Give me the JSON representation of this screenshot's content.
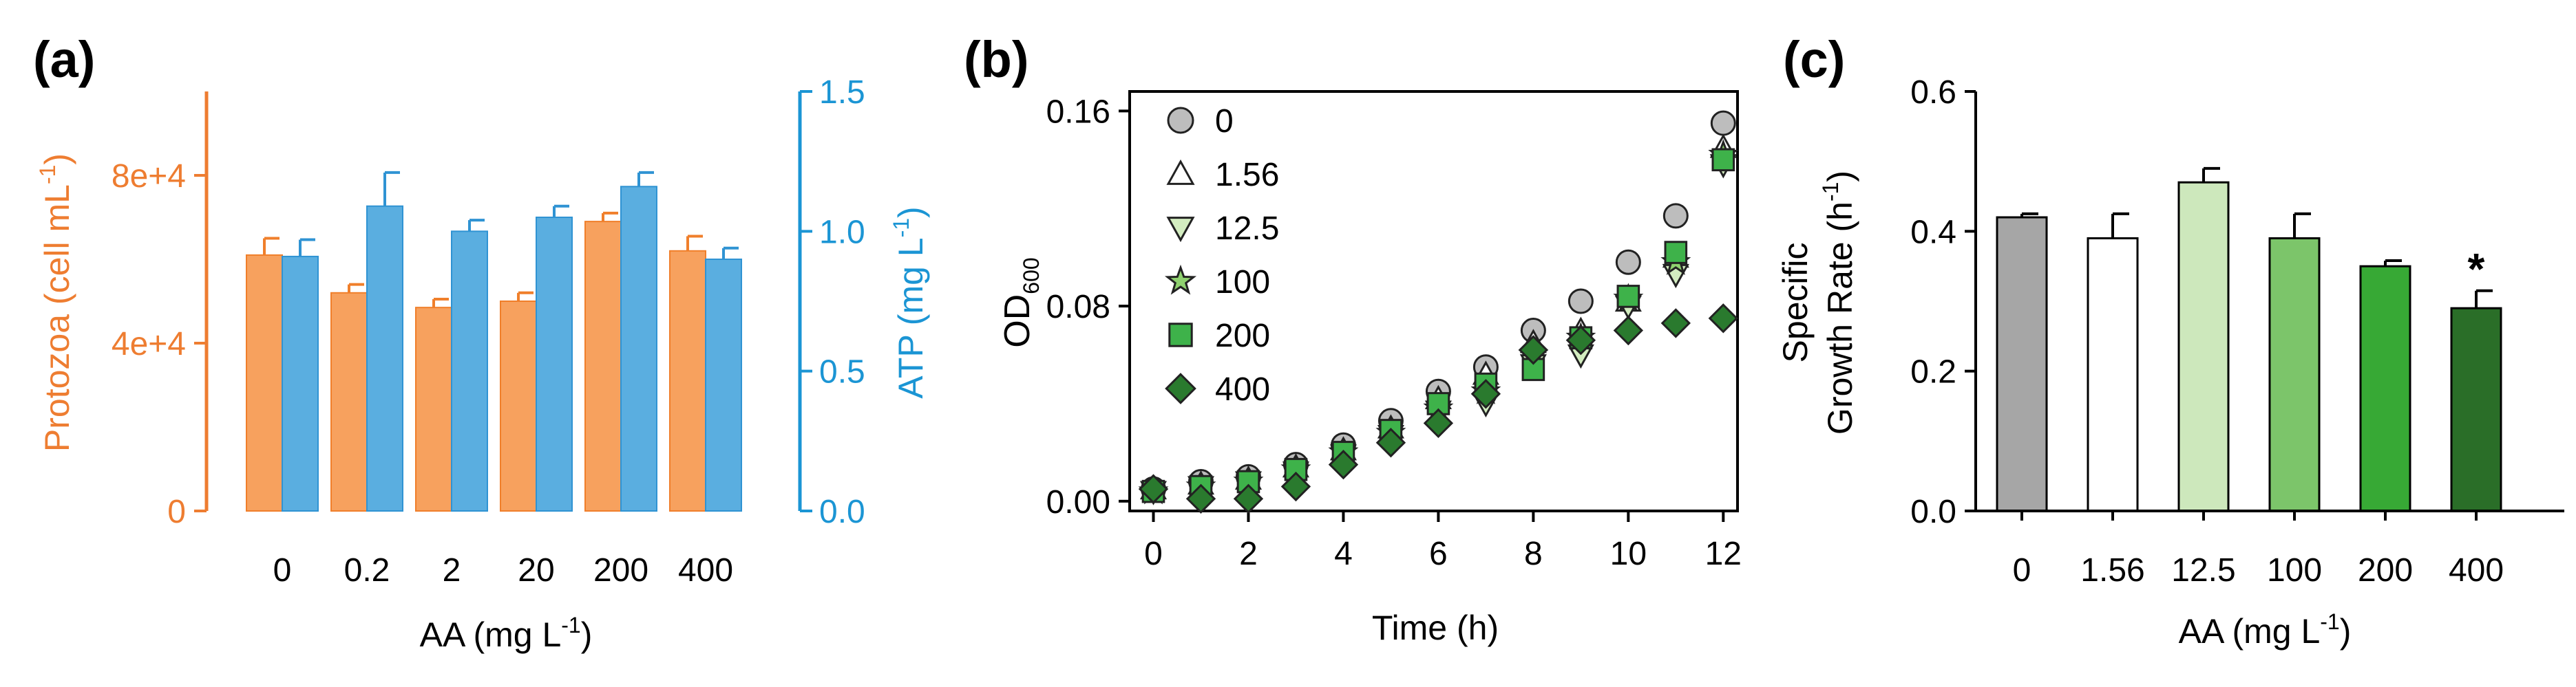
{
  "colors": {
    "protozoa": "#F7A15E",
    "protozoa_edge": "#F07F2B",
    "protozoa_axis": "#EE7D31",
    "atp": "#5AAEE0",
    "atp_edge": "#2F93D3",
    "atp_axis": "#1B95D4",
    "axis": "#000000"
  },
  "chart_data": [
    {
      "panel": "(a)",
      "type": "bar",
      "categories": [
        "0",
        "0.2",
        "2",
        "20",
        "200",
        "400"
      ],
      "xlabel": "AA (mg L",
      "xlabel_sup": "-1",
      "xlabel_end": ")",
      "ylabel_left": "Protozoa (cell mL",
      "ylabel_left_sup": "-1",
      "ylabel_left_end": ")",
      "ylabel_right": "ATP (mg L",
      "ylabel_right_sup": "-1",
      "ylabel_right_end": ")",
      "ylim_left": [
        0,
        100000
      ],
      "yticks_left": [
        0,
        40000,
        80000
      ],
      "yticklabels_left": [
        "0",
        "4e+4",
        "8e+4"
      ],
      "ylim_right": [
        0,
        1.5
      ],
      "yticks_right": [
        0.0,
        0.5,
        1.0,
        1.5
      ],
      "yticklabels_right": [
        "0.0",
        "0.5",
        "1.0",
        "1.5"
      ],
      "series": [
        {
          "name": "Protozoa",
          "axis": "left",
          "values": [
            61000,
            52000,
            48500,
            50000,
            69000,
            62000
          ],
          "errors": [
            4000,
            2000,
            2000,
            2000,
            2000,
            3500
          ]
        },
        {
          "name": "ATP",
          "axis": "right",
          "values": [
            0.91,
            1.09,
            1.0,
            1.05,
            1.16,
            0.9
          ],
          "errors": [
            0.06,
            0.12,
            0.04,
            0.04,
            0.05,
            0.04
          ]
        }
      ]
    },
    {
      "panel": "(b)",
      "type": "scatter",
      "xlabel": "Time (h)",
      "ylabel": "OD",
      "ylabel_sub": "600",
      "xlim": [
        -0.5,
        12.3
      ],
      "xticks": [
        0,
        2,
        4,
        6,
        8,
        10,
        12
      ],
      "xticklabels": [
        "0",
        "2",
        "4",
        "6",
        "8",
        "10",
        "12"
      ],
      "ylim": [
        -0.004,
        0.168
      ],
      "yticks": [
        0.0,
        0.08,
        0.16
      ],
      "yticklabels": [
        "0.00",
        "0.08",
        "0.16"
      ],
      "x": [
        0,
        1,
        2,
        3,
        4,
        5,
        6,
        7,
        8,
        9,
        10,
        11,
        12
      ],
      "series": [
        {
          "name": "0",
          "marker": "circle",
          "color": "#BDBDBD",
          "values": [
            0.005,
            0.008,
            0.01,
            0.015,
            0.023,
            0.033,
            0.045,
            0.055,
            0.07,
            0.082,
            0.098,
            0.117,
            0.155
          ]
        },
        {
          "name": "1.56",
          "marker": "triangle-up",
          "color": "#FFFFFF",
          "values": [
            0.005,
            0.007,
            0.009,
            0.014,
            0.021,
            0.03,
            0.042,
            0.052,
            0.065,
            0.07,
            0.082,
            0.1,
            0.145
          ]
        },
        {
          "name": "12.5",
          "marker": "triangle-down",
          "color": "#D3EDC0",
          "values": [
            0.004,
            0.006,
            0.008,
            0.012,
            0.019,
            0.027,
            0.037,
            0.04,
            0.056,
            0.06,
            0.08,
            0.093,
            0.138
          ]
        },
        {
          "name": "100",
          "marker": "star",
          "color": "#8FD16F",
          "values": [
            0.004,
            0.006,
            0.008,
            0.013,
            0.02,
            0.028,
            0.038,
            0.045,
            0.06,
            0.067,
            0.083,
            0.098,
            0.142
          ]
        },
        {
          "name": "200",
          "marker": "square",
          "color": "#3EB24A",
          "values": [
            0.004,
            0.006,
            0.008,
            0.013,
            0.02,
            0.029,
            0.04,
            0.048,
            0.054,
            0.067,
            0.084,
            0.102,
            0.14
          ]
        },
        {
          "name": "400",
          "marker": "diamond",
          "color": "#2A7A2E",
          "values": [
            0.005,
            0.001,
            0.001,
            0.006,
            0.015,
            0.024,
            0.032,
            0.044,
            0.062,
            0.066,
            0.07,
            0.073,
            0.075
          ]
        }
      ],
      "legend_position": "top-left"
    },
    {
      "panel": "(c)",
      "type": "bar",
      "categories": [
        "0",
        "1.56",
        "12.5",
        "100",
        "200",
        "400"
      ],
      "xlabel": "AA (mg L",
      "xlabel_sup": "-1",
      "xlabel_end": ")",
      "ylabel_line1": "Specific",
      "ylabel_line2": "Growth Rate (h",
      "ylabel_sup": "-1",
      "ylabel_end": ")",
      "ylim": [
        0,
        0.6
      ],
      "yticks": [
        0.0,
        0.2,
        0.4,
        0.6
      ],
      "yticklabels": [
        "0.0",
        "0.2",
        "0.4",
        "0.6"
      ],
      "values": [
        0.42,
        0.39,
        0.47,
        0.39,
        0.35,
        0.29
      ],
      "errors": [
        0.005,
        0.035,
        0.02,
        0.035,
        0.008,
        0.025
      ],
      "bar_colors": [
        "#A6A6A6",
        "#FFFFFF",
        "#CDE8BC",
        "#7CC56A",
        "#37A935",
        "#2A6E28"
      ],
      "annotation": {
        "text": "*",
        "category": "400"
      }
    }
  ]
}
